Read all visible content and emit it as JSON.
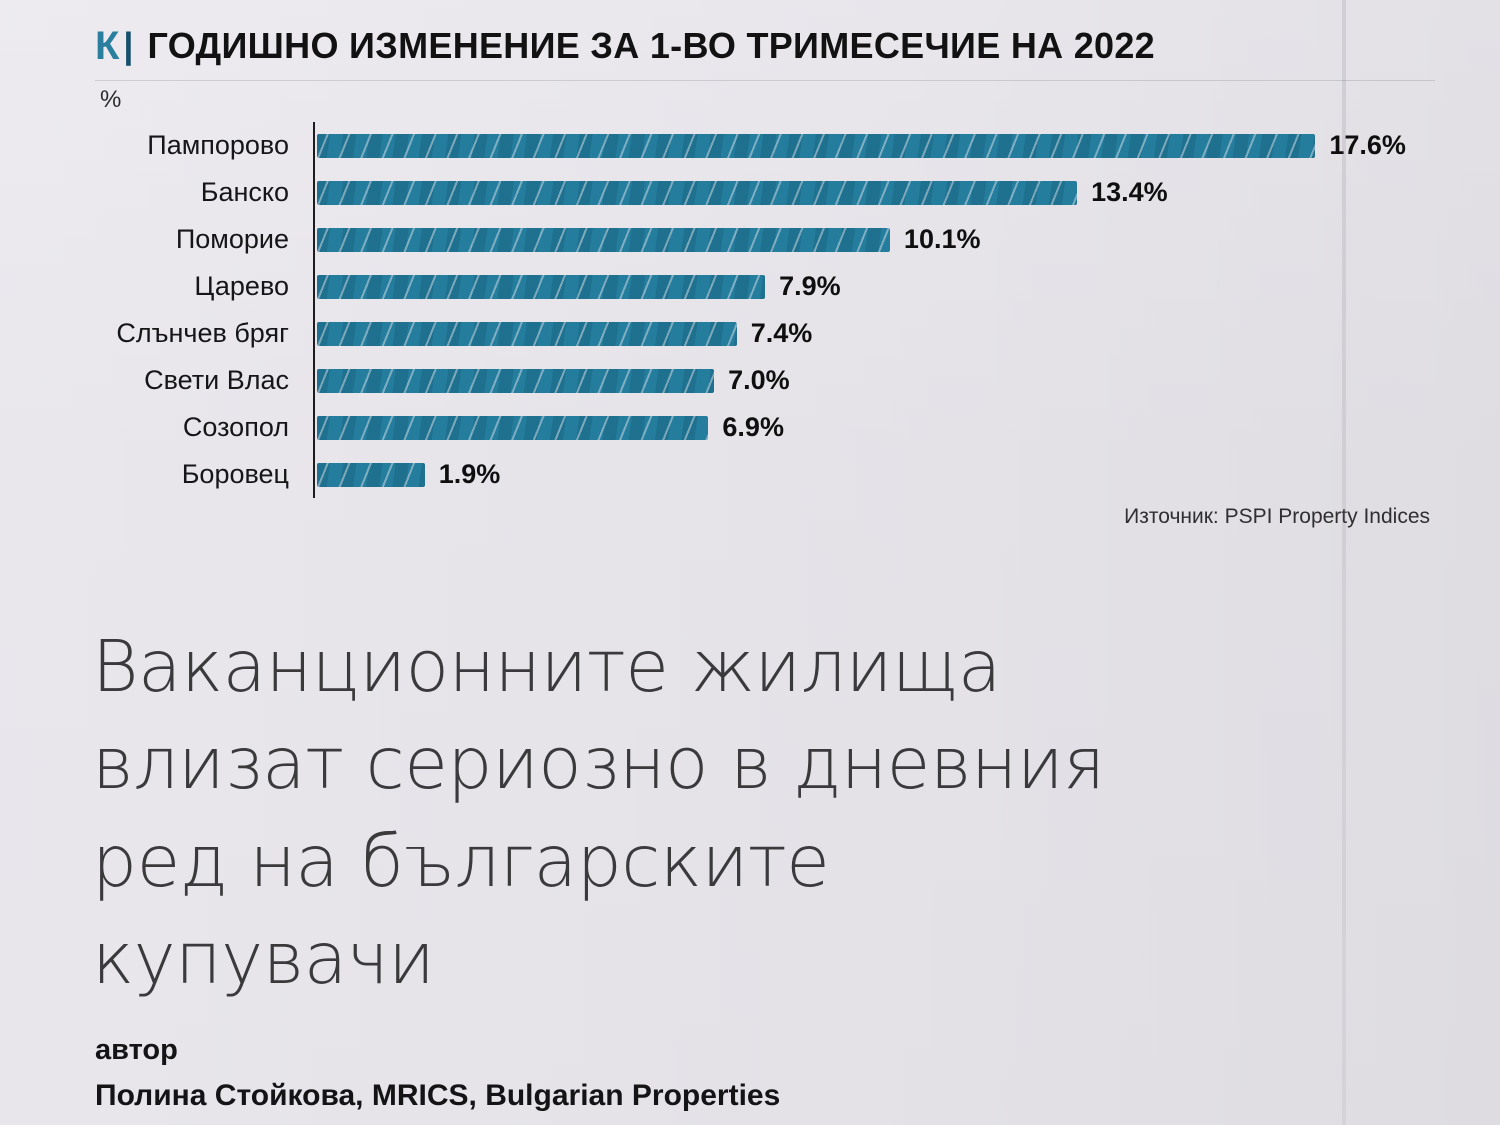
{
  "header": {
    "logo": "К",
    "divider": "|",
    "title": "ГОДИШНО ИЗМЕНЕНИЕ ЗА 1-ВО ТРИМЕСЕЧИЕ НА 2022",
    "accent_color": "#2a7f9e"
  },
  "chart_data": {
    "type": "bar",
    "orientation": "horizontal",
    "title": "ГОДИШНО ИЗМЕНЕНИЕ ЗА 1-ВО ТРИМЕСЕЧИЕ НА 2022",
    "unit_label": "%",
    "categories": [
      "Пампорово",
      "Банско",
      "Поморие",
      "Царево",
      "Слънчев бряг",
      "Свети Влас",
      "Созопол",
      "Боровец"
    ],
    "values": [
      17.6,
      13.4,
      10.1,
      7.9,
      7.4,
      7.0,
      6.9,
      1.9
    ],
    "value_labels": [
      "17.6%",
      "13.4%",
      "10.1%",
      "7.9%",
      "7.4%",
      "7.0%",
      "6.9%",
      "1.9%"
    ],
    "xlim": [
      0,
      18
    ],
    "max_value": 17.6,
    "bar_color": "#257d9e",
    "grid": false,
    "legend": false,
    "source": "Източник: PSPI Property Indices"
  },
  "article": {
    "headline_lines": [
      "Ваканционните жилища",
      "влизат сериозно в дневния",
      "ред на българските",
      "купувачи"
    ],
    "author_label": "автор",
    "author_name": "Полина Стойкова, MRICS, Bulgarian Properties"
  }
}
